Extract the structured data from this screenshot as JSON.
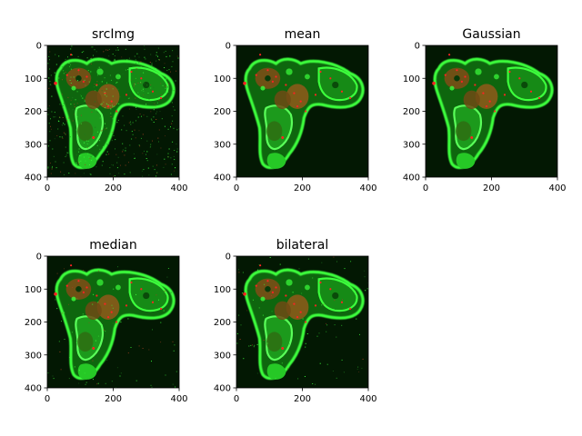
{
  "figure": {
    "panels": [
      {
        "title": "srcImg",
        "noise": "heavy",
        "x_ticks": [
          "0",
          "200",
          "400"
        ],
        "y_ticks": [
          "0",
          "100",
          "200",
          "300",
          "400"
        ]
      },
      {
        "title": "mean",
        "noise": "smooth",
        "x_ticks": [
          "0",
          "200",
          "400"
        ],
        "y_ticks": [
          "0",
          "100",
          "200",
          "300",
          "400"
        ]
      },
      {
        "title": "Gaussian",
        "noise": "smooth",
        "x_ticks": [
          "0",
          "200",
          "400"
        ],
        "y_ticks": [
          "0",
          "100",
          "200",
          "300",
          "400"
        ]
      },
      {
        "title": "median",
        "noise": "light",
        "x_ticks": [
          "0",
          "200",
          "400"
        ],
        "y_ticks": [
          "0",
          "100",
          "200",
          "300",
          "400"
        ]
      },
      {
        "title": "bilateral",
        "noise": "light",
        "x_ticks": [
          "0",
          "200",
          "400"
        ],
        "y_ticks": [
          "0",
          "100",
          "200",
          "300",
          "400"
        ]
      }
    ],
    "image_extent": [
      0,
      400
    ],
    "colors": {
      "background": "#031803",
      "cell_bright": "#3cff3c",
      "cell_mid": "#1fa21f",
      "nucleus": "#8a5a1a",
      "marker": "#ff2222"
    }
  }
}
